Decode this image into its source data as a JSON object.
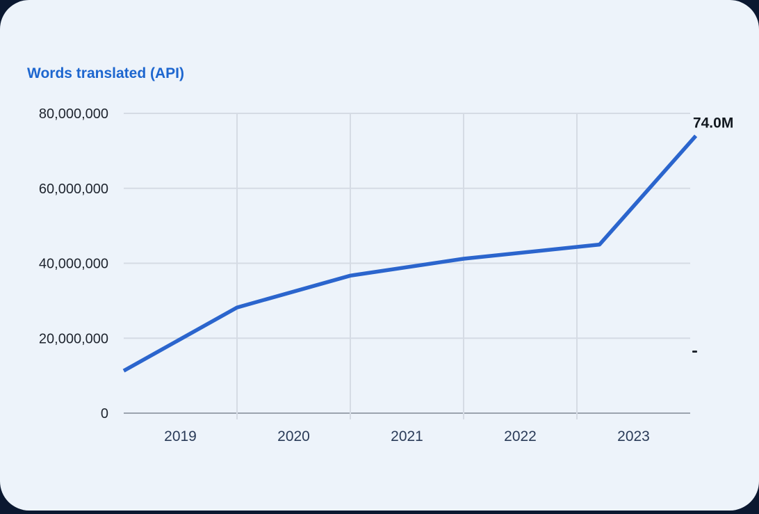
{
  "chart_data": {
    "type": "line",
    "title": "Words translated (API)",
    "xlabel": "",
    "ylabel": "",
    "xlim": [
      2019,
      2024
    ],
    "ylim": [
      0,
      80000000
    ],
    "grid": true,
    "legend": "none",
    "x_tick_labels": [
      "2019",
      "2020",
      "2021",
      "2022",
      "2023"
    ],
    "y_ticks": [
      {
        "value": 0,
        "label": "0"
      },
      {
        "value": 20000000,
        "label": "20,000,000"
      },
      {
        "value": 40000000,
        "label": "40,000,000"
      },
      {
        "value": 60000000,
        "label": "60,000,000"
      },
      {
        "value": 80000000,
        "label": "80,000,000"
      }
    ],
    "series": [
      {
        "name": "Words translated (API)",
        "points": [
          {
            "x": 2019.0,
            "y": 11300000
          },
          {
            "x": 2020.0,
            "y": 28200000
          },
          {
            "x": 2021.0,
            "y": 36700000
          },
          {
            "x": 2022.0,
            "y": 41200000
          },
          {
            "x": 2023.2,
            "y": 45000000
          },
          {
            "x": 2024.05,
            "y": 74000000
          }
        ]
      }
    ],
    "end_label": "74.0M"
  },
  "colors": {
    "page_background": "#0b1830",
    "card_background": "#edf3fa",
    "title": "#1d66cf",
    "line": "#2b65cd",
    "grid": "#d5dbe4",
    "axis": "#9ba3ae",
    "y_tick_label": "#1e242e",
    "x_tick_label": "#2a3b58",
    "end_label": "#12181f"
  }
}
